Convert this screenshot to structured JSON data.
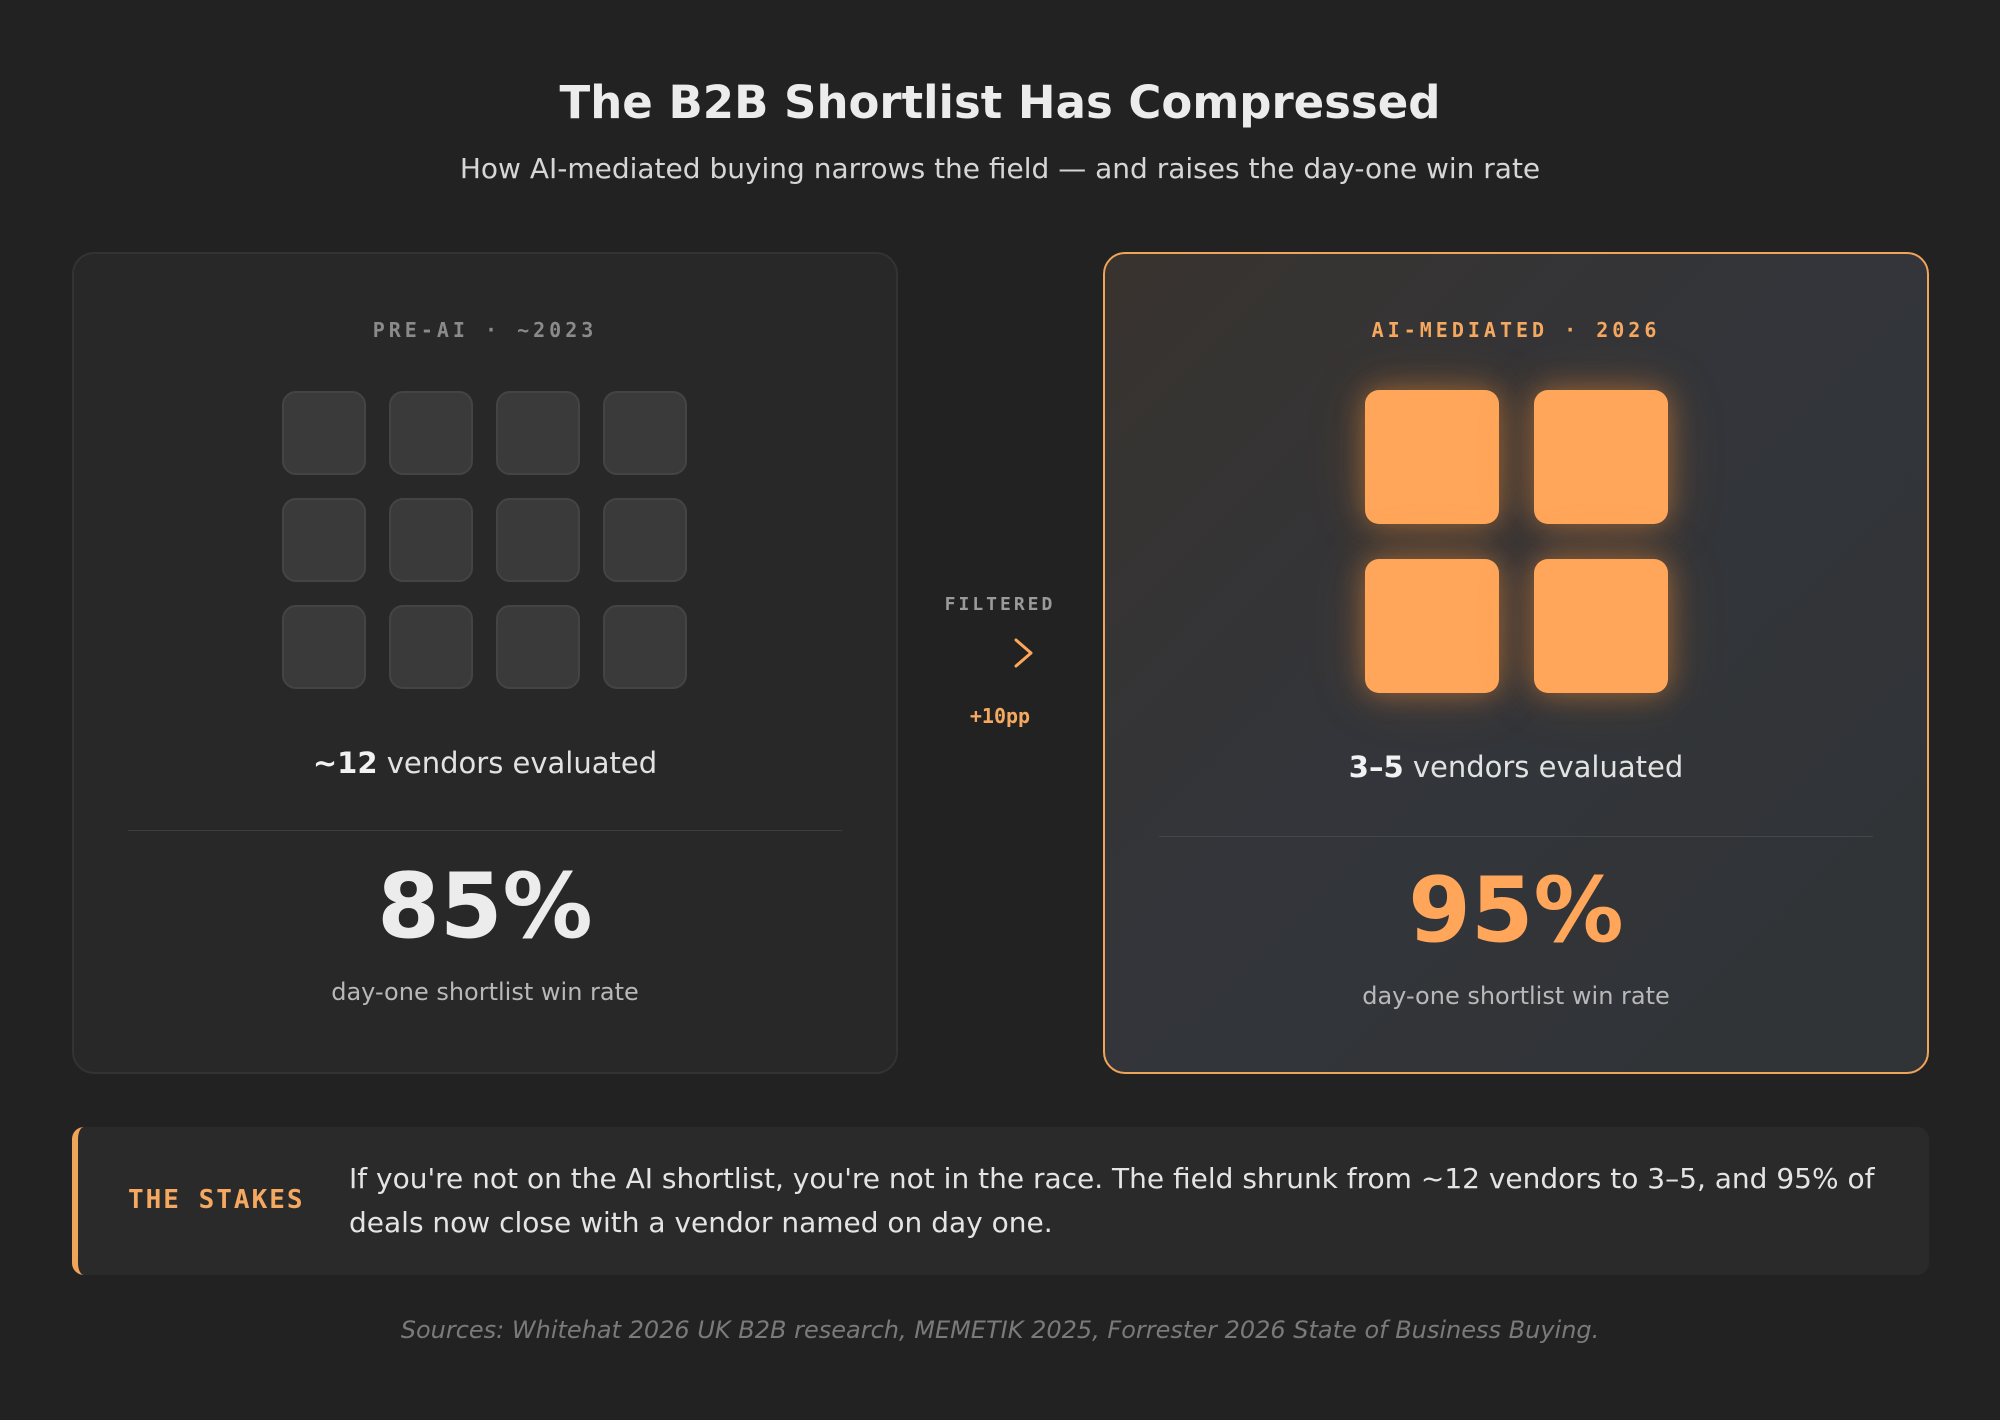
{
  "header": {
    "title": "The B2B Shortlist Has Compressed",
    "subtitle": "How AI-mediated buying narrows the field — and raises the day-one win rate"
  },
  "before": {
    "eyebrow": "PRE-AI · ~2023",
    "vendor_tiles": 12,
    "vendors_count": "~12",
    "vendors_text": " vendors evaluated",
    "win_rate": "85%",
    "win_rate_label": "day-one shortlist win rate"
  },
  "connector": {
    "label": "FILTERED",
    "delta": "+10pp",
    "icon": "arrow-right-icon"
  },
  "after": {
    "eyebrow": "AI-MEDIATED · 2026",
    "vendor_tiles": 4,
    "vendors_count": "3–5",
    "vendors_text": " vendors evaluated",
    "win_rate": "95%",
    "win_rate_label": "day-one shortlist win rate"
  },
  "stakes": {
    "label": "THE STAKES",
    "text": "If you're not on the AI shortlist, you're not in the race. The field shrunk from ~12 vendors to 3–5, and 95% of deals now close with a vendor named on day one."
  },
  "sources": "Sources: Whitehat 2026 UK B2B research, MEMETIK 2025, Forrester 2026 State of Business Buying.",
  "colors": {
    "background": "#222222",
    "accent": "#ffa65a",
    "muted_tile": "#3a3a3a"
  }
}
